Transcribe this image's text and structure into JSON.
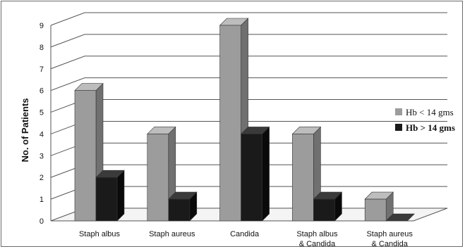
{
  "chart_data": {
    "type": "bar",
    "style": "3d-clustered-column",
    "categories": [
      [
        "Staph albus"
      ],
      [
        "Staph aureus"
      ],
      [
        "Candida"
      ],
      [
        "Staph albus",
        "& Candida"
      ],
      [
        "Staph aureus",
        "& Candida"
      ]
    ],
    "series": [
      {
        "name": "Hb < 14 gms",
        "color": "#9c9c9c",
        "values": [
          6,
          4,
          9,
          4,
          1
        ]
      },
      {
        "name": "Hb  > 14 gms",
        "color": "#1a1a1a",
        "values": [
          2,
          1,
          4,
          1,
          0
        ]
      }
    ],
    "ylabel": "No.    of     Patients",
    "ylim": [
      0,
      9
    ],
    "yticks": [
      0,
      1,
      2,
      3,
      4,
      5,
      6,
      7,
      8,
      9
    ],
    "grid": true,
    "legend_position": "right"
  }
}
